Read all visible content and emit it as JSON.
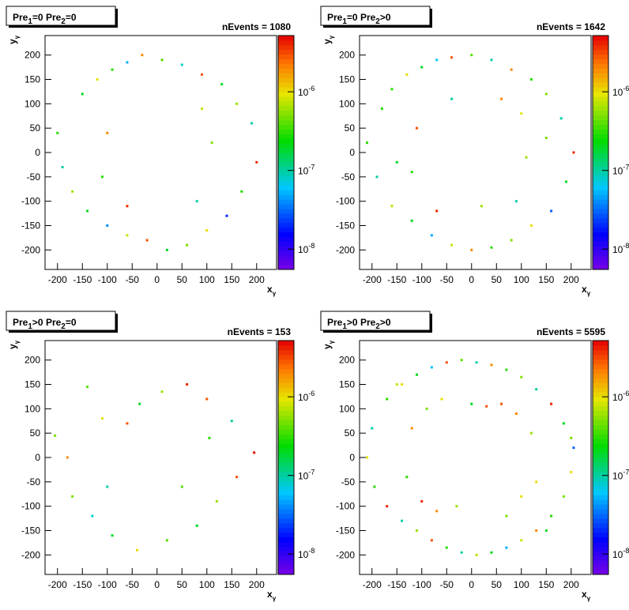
{
  "chart_data": [
    {
      "type": "scatter",
      "title": [
        "Pre",
        "1",
        "=0  Pre",
        "2",
        "=0"
      ],
      "annotation": "nEvents = 1080",
      "xlabel": [
        "x",
        "γ"
      ],
      "ylabel": [
        "y",
        "γ"
      ],
      "xlim": [
        -225,
        240
      ],
      "ylim": [
        -240,
        240
      ],
      "xticks": [
        -200,
        -150,
        -100,
        -50,
        0,
        50,
        100,
        150,
        200
      ],
      "yticks": [
        -200,
        -150,
        -100,
        -50,
        0,
        50,
        100,
        150,
        200
      ],
      "log_z": true,
      "zlim": [
        5.5e-09,
        5.2e-06
      ],
      "zticks": [
        {
          "value": 1e-06,
          "label": "10",
          "sup": "-6"
        },
        {
          "value": 1e-07,
          "label": "10",
          "sup": "-7"
        },
        {
          "value": 1e-08,
          "label": "10",
          "sup": "-8"
        }
      ],
      "x": [
        -150,
        -120,
        -90,
        -60,
        -30,
        10,
        50,
        90,
        130,
        160,
        190,
        200,
        170,
        140,
        100,
        60,
        20,
        -20,
        -60,
        -100,
        -140,
        -170,
        -190,
        -200,
        -100,
        110,
        80,
        -60,
        -110,
        90
      ],
      "y": [
        120,
        150,
        170,
        185,
        200,
        190,
        180,
        160,
        140,
        100,
        60,
        -20,
        -80,
        -130,
        -160,
        -190,
        -200,
        -180,
        -170,
        -150,
        -120,
        -80,
        -30,
        40,
        40,
        20,
        -100,
        -110,
        -50,
        90
      ],
      "z": [
        2e-07,
        1e-06,
        3e-07,
        5e-08,
        2e-06,
        4e-07,
        8e-08,
        3e-06,
        2e-07,
        6e-07,
        1e-07,
        4e-06,
        3e-07,
        2e-08,
        1e-06,
        5e-07,
        2e-07,
        3e-06,
        8e-07,
        4e-08,
        2e-07,
        6e-07,
        1e-07,
        3e-07,
        2e-06,
        5e-07,
        1e-07,
        4e-06,
        3e-07,
        8e-07
      ]
    },
    {
      "type": "scatter",
      "title": [
        "Pre",
        "1",
        "=0  Pre",
        "2",
        ">0"
      ],
      "annotation": "nEvents = 1642",
      "xlabel": [
        "x",
        "γ"
      ],
      "ylabel": [
        "y",
        "γ"
      ],
      "xlim": [
        -225,
        240
      ],
      "ylim": [
        -240,
        240
      ],
      "xticks": [
        -200,
        -150,
        -100,
        -50,
        0,
        50,
        100,
        150,
        200
      ],
      "yticks": [
        -200,
        -150,
        -100,
        -50,
        0,
        50,
        100,
        150,
        200
      ],
      "log_z": true,
      "zlim": [
        5.5e-09,
        5.2e-06
      ],
      "zticks": [
        {
          "value": 1e-06,
          "label": "10",
          "sup": "-6"
        },
        {
          "value": 1e-07,
          "label": "10",
          "sup": "-7"
        },
        {
          "value": 1e-08,
          "label": "10",
          "sup": "-8"
        }
      ],
      "x": [
        -160,
        -130,
        -100,
        -70,
        -40,
        0,
        40,
        80,
        120,
        150,
        180,
        205,
        190,
        160,
        120,
        80,
        40,
        0,
        -40,
        -80,
        -120,
        -160,
        -190,
        -210,
        -110,
        110,
        90,
        -70,
        -120,
        100,
        -150,
        150,
        60,
        -40,
        20,
        -180
      ],
      "y": [
        130,
        160,
        175,
        190,
        195,
        200,
        190,
        170,
        150,
        120,
        70,
        0,
        -60,
        -120,
        -150,
        -180,
        -195,
        -200,
        -190,
        -170,
        -140,
        -110,
        -50,
        20,
        50,
        -10,
        -100,
        -120,
        -40,
        80,
        -20,
        30,
        110,
        110,
        -110,
        90
      ],
      "z": [
        3e-07,
        1e-06,
        2e-07,
        6e-08,
        3e-06,
        4e-07,
        1e-07,
        2e-06,
        3e-07,
        5e-07,
        1e-07,
        4e-06,
        2e-07,
        3e-08,
        1e-06,
        5e-07,
        3e-07,
        2e-06,
        8e-07,
        5e-08,
        2e-07,
        7e-07,
        1e-07,
        3e-07,
        3e-06,
        6e-07,
        1e-07,
        4e-06,
        3e-07,
        9e-07,
        2e-07,
        5e-07,
        2e-06,
        1e-07,
        6e-07,
        3e-07
      ]
    },
    {
      "type": "scatter",
      "title": [
        "Pre",
        "1",
        ">0  Pre",
        "2",
        "=0"
      ],
      "annotation": "nEvents = 153",
      "xlabel": [
        "x",
        "γ"
      ],
      "ylabel": [
        "y",
        "γ"
      ],
      "xlim": [
        -225,
        240
      ],
      "ylim": [
        -240,
        240
      ],
      "xticks": [
        -200,
        -150,
        -100,
        -50,
        0,
        50,
        100,
        150,
        200
      ],
      "yticks": [
        -200,
        -150,
        -100,
        -50,
        0,
        50,
        100,
        150,
        200
      ],
      "log_z": true,
      "zlim": [
        5.5e-09,
        5.2e-06
      ],
      "zticks": [
        {
          "value": 1e-06,
          "label": "10",
          "sup": "-6"
        },
        {
          "value": 1e-07,
          "label": "10",
          "sup": "-7"
        },
        {
          "value": 1e-08,
          "label": "10",
          "sup": "-8"
        }
      ],
      "x": [
        -205,
        -180,
        -140,
        -110,
        -60,
        -35,
        10,
        60,
        105,
        150,
        195,
        160,
        120,
        80,
        20,
        -40,
        -90,
        -130,
        -170,
        100,
        -100,
        50
      ],
      "y": [
        45,
        0,
        145,
        80,
        70,
        110,
        135,
        150,
        40,
        75,
        10,
        -40,
        -90,
        -140,
        -170,
        -190,
        -160,
        -120,
        -80,
        120,
        -60,
        -60
      ],
      "z": [
        5e-07,
        2e-06,
        4e-07,
        1e-06,
        3e-06,
        2e-07,
        6e-07,
        4e-06,
        3e-07,
        1e-07,
        5e-06,
        3e-06,
        6e-07,
        2e-07,
        4e-07,
        1e-06,
        2e-07,
        8e-08,
        5e-07,
        3e-06,
        1e-07,
        4e-07
      ]
    },
    {
      "type": "scatter",
      "title": [
        "Pre",
        "1",
        ">0  Pre",
        "2",
        ">0"
      ],
      "annotation": "nEvents = 5595",
      "xlabel": [
        "x",
        "γ"
      ],
      "ylabel": [
        "y",
        "γ"
      ],
      "xlim": [
        -225,
        240
      ],
      "ylim": [
        -240,
        240
      ],
      "xticks": [
        -200,
        -150,
        -100,
        -50,
        0,
        50,
        100,
        150,
        200
      ],
      "yticks": [
        -200,
        -150,
        -100,
        -50,
        0,
        50,
        100,
        150,
        200
      ],
      "log_z": true,
      "zlim": [
        5.5e-09,
        5.2e-06
      ],
      "zticks": [
        {
          "value": 1e-06,
          "label": "10",
          "sup": "-6"
        },
        {
          "value": 1e-07,
          "label": "10",
          "sup": "-7"
        },
        {
          "value": 1e-08,
          "label": "10",
          "sup": "-8"
        }
      ],
      "x": [
        -170,
        -140,
        -110,
        -80,
        -50,
        -20,
        10,
        40,
        70,
        100,
        130,
        160,
        185,
        205,
        200,
        185,
        160,
        130,
        100,
        70,
        40,
        10,
        -20,
        -50,
        -80,
        -110,
        -140,
        -170,
        -195,
        -210,
        -120,
        -90,
        -60,
        60,
        90,
        120,
        -100,
        100,
        -70,
        70,
        -130,
        130,
        0,
        -30,
        30,
        -200,
        200,
        150,
        -150
      ],
      "y": [
        120,
        150,
        170,
        185,
        195,
        200,
        195,
        190,
        180,
        165,
        140,
        110,
        70,
        20,
        -30,
        -80,
        -120,
        -150,
        -170,
        -185,
        -195,
        -200,
        -195,
        -185,
        -170,
        -150,
        -130,
        -100,
        -60,
        0,
        60,
        100,
        120,
        110,
        90,
        50,
        -90,
        -80,
        -110,
        -120,
        -40,
        -50,
        110,
        -100,
        105,
        60,
        40,
        -150,
        150
      ],
      "z": [
        3e-07,
        1e-06,
        2e-07,
        6e-08,
        3e-06,
        4e-07,
        1e-07,
        2e-06,
        3e-07,
        5e-07,
        1e-07,
        4e-06,
        2e-07,
        3e-08,
        1e-06,
        5e-07,
        3e-07,
        2e-06,
        8e-07,
        5e-08,
        2e-07,
        7e-07,
        1e-07,
        3e-07,
        3e-06,
        6e-07,
        1e-07,
        4e-06,
        3e-07,
        9e-07,
        2e-06,
        5e-07,
        1e-06,
        3e-06,
        2e-06,
        6e-07,
        4e-06,
        1e-06,
        2e-06,
        5e-07,
        3e-07,
        1e-06,
        2e-07,
        6e-07,
        3e-06,
        1e-07,
        5e-07,
        2e-07,
        8e-07
      ]
    }
  ]
}
